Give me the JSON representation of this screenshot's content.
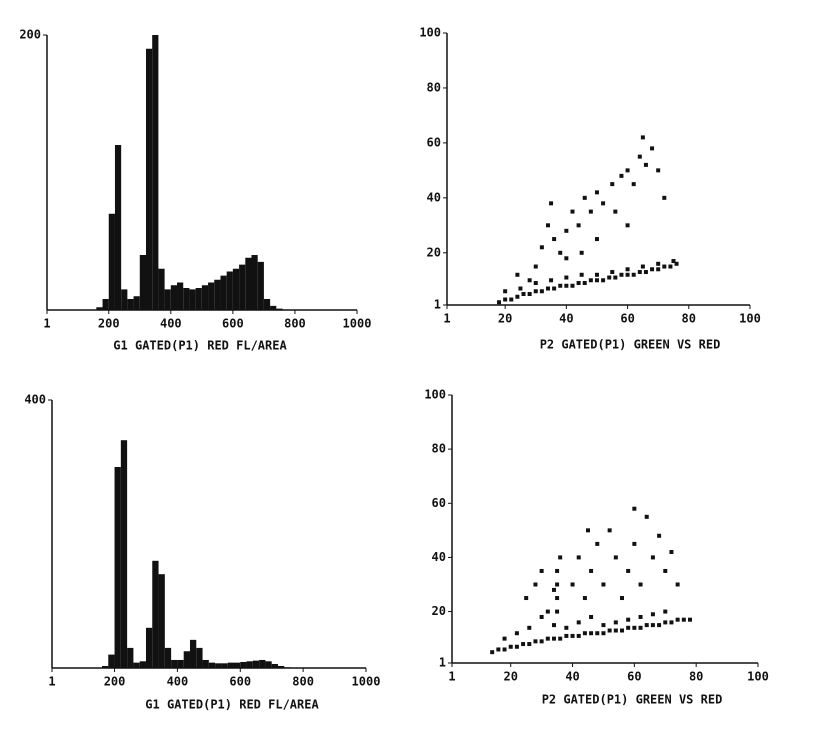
{
  "chart_data": [
    {
      "type": "histogram",
      "xlabel": "G1 GATED(P1) RED FL/AREA",
      "color": "#111111",
      "bins": [
        160,
        180,
        200,
        220,
        240,
        260,
        280,
        300,
        320,
        340,
        360,
        380,
        400,
        420,
        440,
        460,
        480,
        500,
        520,
        540,
        560,
        580,
        600,
        620,
        640,
        660,
        680,
        700,
        720,
        740,
        760
      ],
      "values": [
        2,
        8,
        70,
        120,
        15,
        8,
        10,
        40,
        190,
        200,
        30,
        15,
        18,
        20,
        16,
        15,
        16,
        18,
        20,
        22,
        25,
        28,
        30,
        33,
        38,
        40,
        35,
        8,
        3,
        1
      ],
      "xlim": [
        1,
        1000
      ],
      "xticks": [
        1,
        200,
        400,
        600,
        800,
        1000
      ],
      "ylim": [
        0,
        200
      ],
      "yticks": [
        200
      ]
    },
    {
      "type": "scatter",
      "xlabel": "P2 GATED(P1) GREEN VS RED",
      "color": "#111111",
      "x": [
        18,
        20,
        22,
        24,
        26,
        28,
        30,
        32,
        34,
        36,
        38,
        40,
        42,
        44,
        46,
        48,
        50,
        52,
        54,
        56,
        58,
        60,
        62,
        64,
        66,
        68,
        70,
        72,
        74,
        76,
        20,
        25,
        30,
        35,
        40,
        45,
        50,
        55,
        60,
        65,
        70,
        75,
        30,
        32,
        34,
        35,
        36,
        38,
        40,
        42,
        44,
        46,
        48,
        50,
        52,
        55,
        58,
        60,
        62,
        64,
        66,
        68,
        70,
        72,
        65,
        56,
        60,
        50,
        45,
        40,
        28,
        24
      ],
      "values": [
        2,
        3,
        3,
        4,
        5,
        5,
        6,
        6,
        7,
        7,
        8,
        8,
        8,
        9,
        9,
        10,
        10,
        10,
        11,
        11,
        12,
        12,
        12,
        13,
        13,
        14,
        14,
        15,
        15,
        16,
        6,
        7,
        9,
        10,
        11,
        12,
        12,
        13,
        14,
        15,
        16,
        17,
        15,
        22,
        30,
        38,
        25,
        20,
        28,
        35,
        30,
        40,
        35,
        42,
        38,
        45,
        48,
        50,
        45,
        55,
        52,
        58,
        50,
        40,
        62,
        35,
        30,
        25,
        20,
        18,
        10,
        12
      ],
      "xlim": [
        1,
        100
      ],
      "xticks": [
        1,
        20,
        40,
        60,
        80,
        100
      ],
      "ylim": [
        1,
        100
      ],
      "yticks": [
        1,
        20,
        40,
        60,
        80,
        100
      ]
    },
    {
      "type": "histogram",
      "xlabel": "G1 GATED(P1) RED FL/AREA",
      "color": "#111111",
      "bins": [
        160,
        180,
        200,
        220,
        240,
        260,
        280,
        300,
        320,
        340,
        360,
        380,
        400,
        420,
        440,
        460,
        480,
        500,
        520,
        540,
        560,
        580,
        600,
        620,
        640,
        660,
        680,
        700,
        720,
        740,
        760
      ],
      "values": [
        3,
        20,
        300,
        340,
        30,
        8,
        10,
        60,
        160,
        140,
        30,
        12,
        12,
        25,
        42,
        30,
        12,
        8,
        7,
        7,
        8,
        8,
        9,
        10,
        11,
        12,
        10,
        6,
        3,
        1
      ],
      "xlim": [
        1,
        1000
      ],
      "xticks": [
        1,
        200,
        400,
        600,
        800,
        1000
      ],
      "ylim": [
        0,
        400
      ],
      "yticks": [
        400
      ]
    },
    {
      "type": "scatter",
      "xlabel": "P2 GATED(P1) GREEN VS RED",
      "color": "#111111",
      "x": [
        14,
        16,
        18,
        20,
        22,
        24,
        26,
        28,
        30,
        32,
        34,
        36,
        38,
        40,
        42,
        44,
        46,
        48,
        50,
        52,
        54,
        56,
        58,
        60,
        62,
        64,
        66,
        68,
        70,
        72,
        74,
        76,
        78,
        18,
        22,
        26,
        30,
        34,
        38,
        42,
        46,
        50,
        54,
        58,
        62,
        66,
        70,
        35,
        35,
        35,
        35,
        36,
        34,
        25,
        28,
        30,
        32,
        40,
        42,
        44,
        46,
        48,
        50,
        52,
        54,
        56,
        58,
        60,
        62,
        64,
        66,
        68,
        70,
        72,
        74,
        60,
        45
      ],
      "values": [
        5,
        6,
        6,
        7,
        7,
        8,
        8,
        9,
        9,
        10,
        10,
        10,
        11,
        11,
        11,
        12,
        12,
        12,
        12,
        13,
        13,
        13,
        14,
        14,
        14,
        15,
        15,
        15,
        16,
        16,
        17,
        17,
        17,
        10,
        12,
        14,
        18,
        15,
        14,
        16,
        18,
        15,
        16,
        17,
        18,
        19,
        20,
        20,
        25,
        30,
        35,
        40,
        28,
        25,
        30,
        35,
        20,
        30,
        40,
        25,
        35,
        45,
        30,
        50,
        40,
        25,
        35,
        45,
        30,
        55,
        40,
        48,
        35,
        42,
        30,
        58,
        50
      ],
      "xlim": [
        1,
        100
      ],
      "xticks": [
        1,
        20,
        40,
        60,
        80,
        100
      ],
      "ylim": [
        1,
        100
      ],
      "yticks": [
        1,
        20,
        40,
        60,
        80,
        100
      ]
    }
  ]
}
